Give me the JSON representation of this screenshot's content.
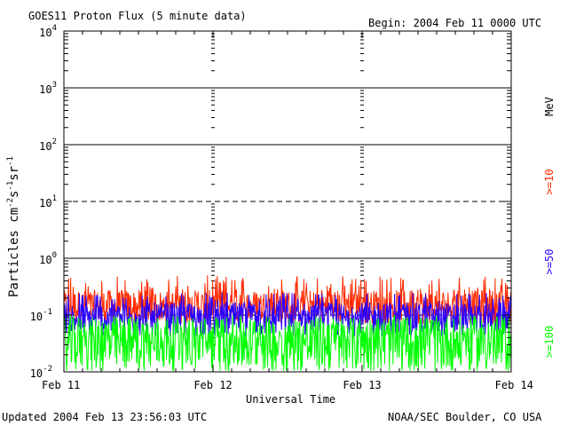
{
  "chart_data": {
    "type": "line",
    "title": "GOES11 Proton Flux (5 minute data)",
    "begin": "Begin: 2004 Feb 11 0000 UTC",
    "ylabel_base": "Particles cm",
    "ylabel_sup1": "-2",
    "ylabel_mid1": "s",
    "ylabel_sup2": "-1",
    "ylabel_mid2": "sr",
    "ylabel_sup3": "-1",
    "xlabel": "Universal Time",
    "yscale": "log",
    "ylim": [
      0.01,
      10000
    ],
    "y_ticks": [
      {
        "value": 10000,
        "base": "10",
        "exp": "4"
      },
      {
        "value": 1000,
        "base": "10",
        "exp": "3"
      },
      {
        "value": 100,
        "base": "10",
        "exp": "2"
      },
      {
        "value": 10,
        "base": "10",
        "exp": "1"
      },
      {
        "value": 1,
        "base": "10",
        "exp": "0"
      },
      {
        "value": 0.1,
        "base": "10",
        "exp": "-1"
      },
      {
        "value": 0.01,
        "base": "10",
        "exp": "-2"
      }
    ],
    "x_ticks": [
      "Feb 11",
      "Feb 12",
      "Feb 13",
      "Feb 14"
    ],
    "xlim_days": [
      0,
      3
    ],
    "reference_lines": [
      {
        "value": 1000,
        "style": "solid"
      },
      {
        "value": 100,
        "style": "solid"
      },
      {
        "value": 10,
        "style": "dashed"
      },
      {
        "value": 1,
        "style": "solid"
      },
      {
        "value": 0.1,
        "style": "dashed"
      }
    ],
    "series": [
      {
        "name": ">=10",
        "color": "#ff2a00",
        "typical": 0.15,
        "spike_max": 0.5
      },
      {
        "name": ">=50",
        "color": "#2a00ff",
        "typical": 0.09,
        "spike_max": 0.25
      },
      {
        "name": ">=100",
        "color": "#00ff00",
        "typical": 0.035,
        "spike_max": 0.09
      }
    ],
    "legend_unit": "MeV",
    "legend_position": "right-vertical"
  },
  "footer": {
    "updated": "Updated 2004 Feb 13 23:56:03 UTC",
    "credit": "NOAA/SEC Boulder, CO USA"
  }
}
